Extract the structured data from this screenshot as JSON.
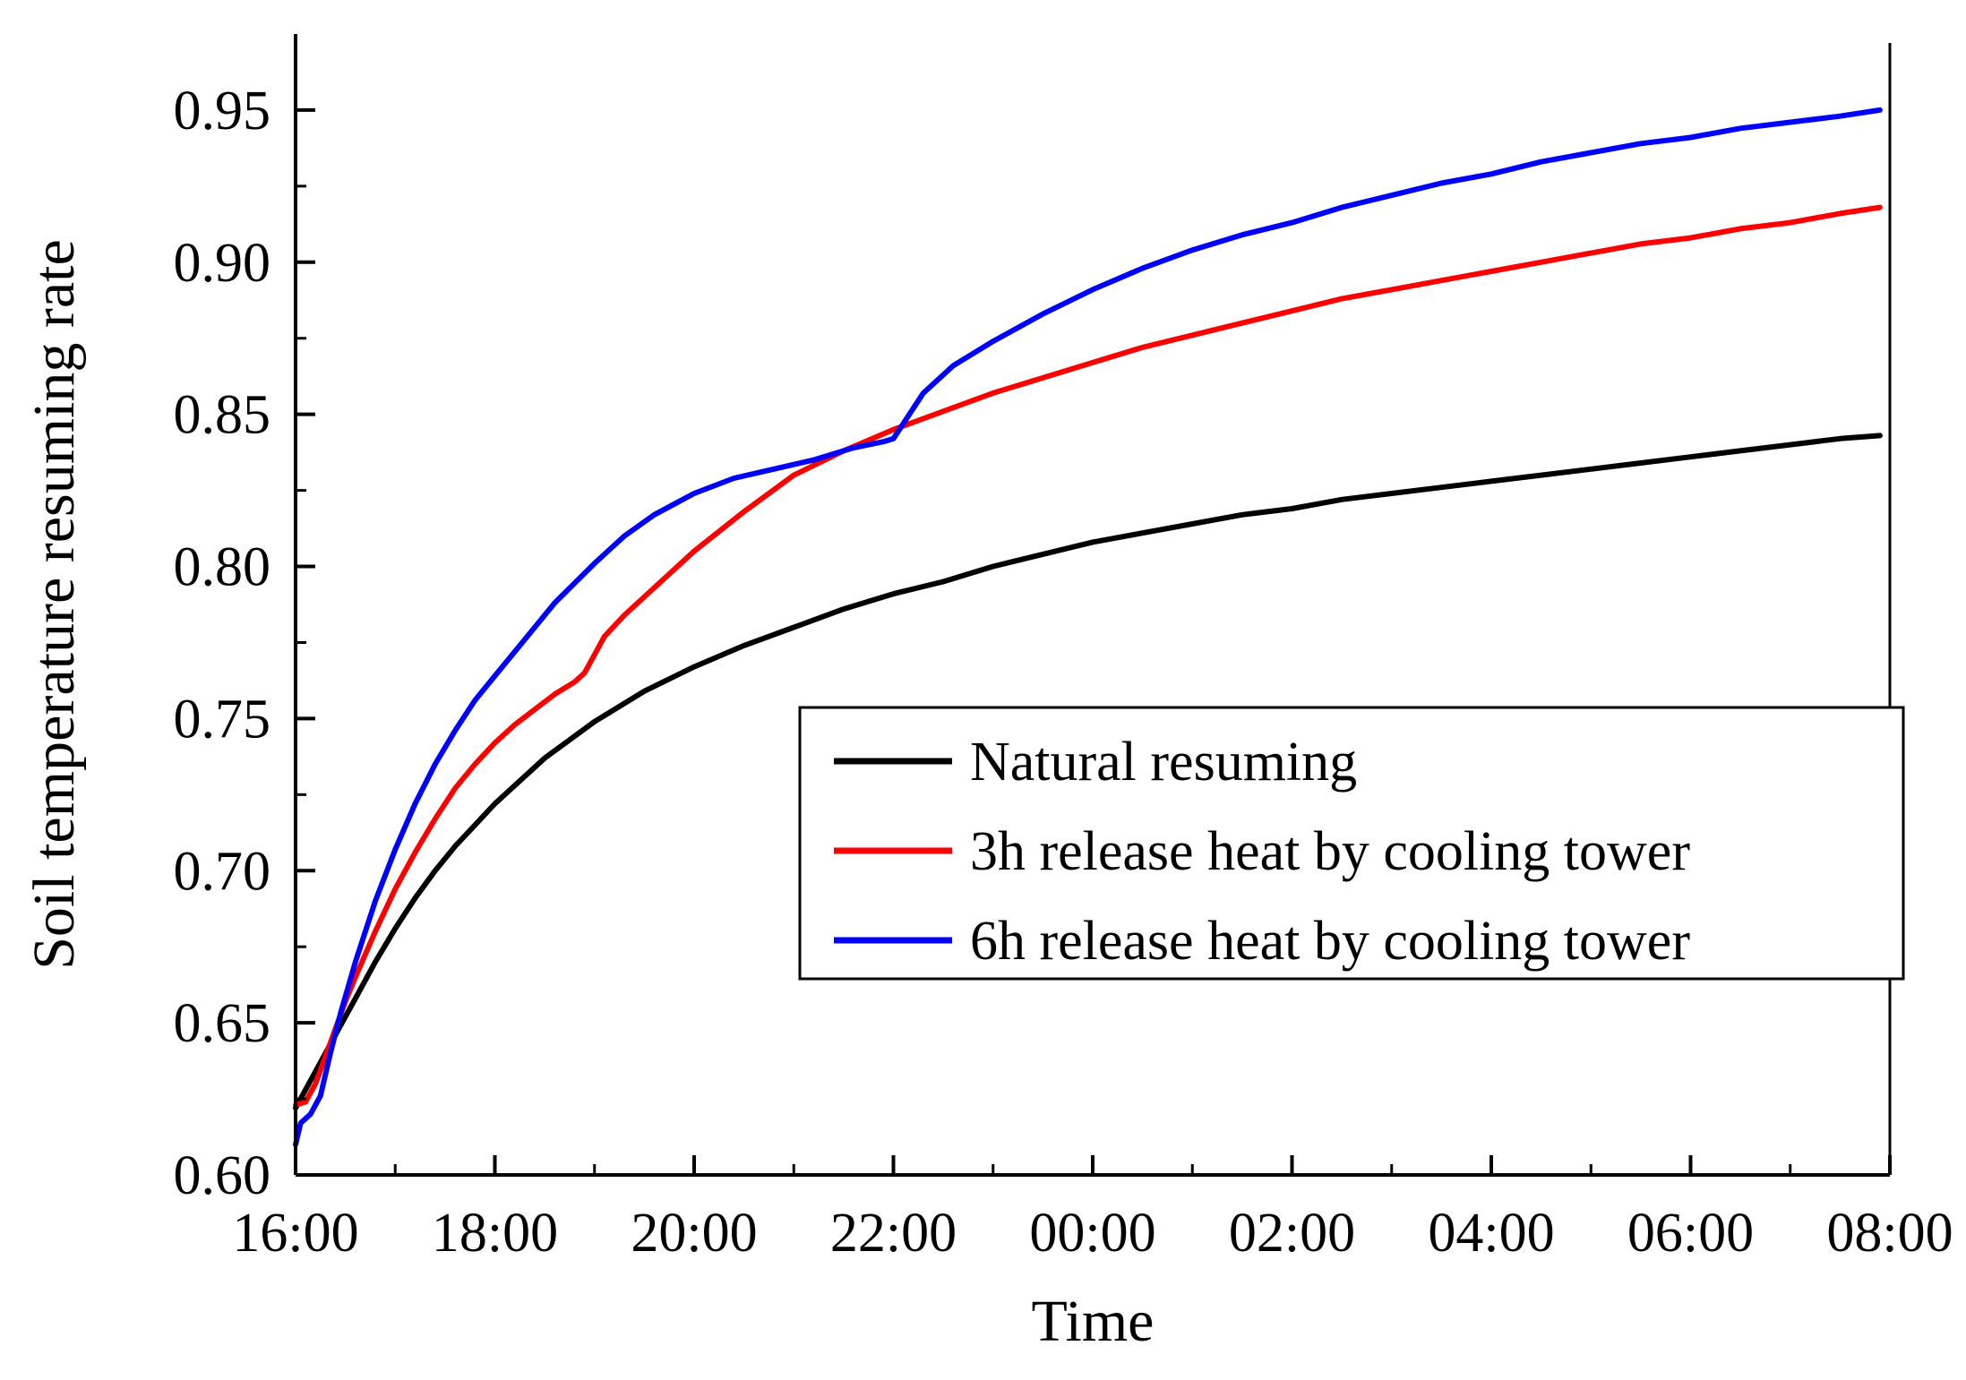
{
  "chart_data": {
    "type": "line",
    "title": "",
    "xlabel": "Time",
    "ylabel": "Soil temperature resuming rate",
    "x_unit": "hours since 16:00",
    "xlim": [
      0,
      16
    ],
    "ylim": [
      0.6,
      0.975
    ],
    "x_ticks": [
      {
        "value": 0,
        "label": "16:00"
      },
      {
        "value": 2,
        "label": "18:00"
      },
      {
        "value": 4,
        "label": "20:00"
      },
      {
        "value": 6,
        "label": "22:00"
      },
      {
        "value": 8,
        "label": "00:00"
      },
      {
        "value": 10,
        "label": "02:00"
      },
      {
        "value": 12,
        "label": "04:00"
      },
      {
        "value": 14,
        "label": "06:00"
      },
      {
        "value": 16,
        "label": "08:00"
      }
    ],
    "y_ticks": [
      {
        "value": 0.6,
        "label": "0.60"
      },
      {
        "value": 0.65,
        "label": "0.65"
      },
      {
        "value": 0.7,
        "label": "0.70"
      },
      {
        "value": 0.75,
        "label": "0.75"
      },
      {
        "value": 0.8,
        "label": "0.80"
      },
      {
        "value": 0.85,
        "label": "0.85"
      },
      {
        "value": 0.9,
        "label": "0.90"
      },
      {
        "value": 0.95,
        "label": "0.95"
      }
    ],
    "grid": false,
    "legend_position": "center-right",
    "series": [
      {
        "name": "Natural resuming",
        "color": "#000000",
        "points": [
          [
            0,
            0.622
          ],
          [
            0.1,
            0.628
          ],
          [
            0.2,
            0.634
          ],
          [
            0.3,
            0.64
          ],
          [
            0.4,
            0.646
          ],
          [
            0.5,
            0.652
          ],
          [
            0.6,
            0.658
          ],
          [
            0.7,
            0.664
          ],
          [
            0.8,
            0.67
          ],
          [
            1.0,
            0.681
          ],
          [
            1.2,
            0.691
          ],
          [
            1.4,
            0.7
          ],
          [
            1.6,
            0.708
          ],
          [
            1.8,
            0.715
          ],
          [
            2.0,
            0.722
          ],
          [
            2.5,
            0.737
          ],
          [
            3.0,
            0.749
          ],
          [
            3.5,
            0.759
          ],
          [
            4.0,
            0.767
          ],
          [
            4.5,
            0.774
          ],
          [
            5.0,
            0.78
          ],
          [
            5.5,
            0.786
          ],
          [
            6.0,
            0.791
          ],
          [
            6.5,
            0.795
          ],
          [
            7.0,
            0.8
          ],
          [
            7.5,
            0.804
          ],
          [
            8.0,
            0.808
          ],
          [
            8.5,
            0.811
          ],
          [
            9.0,
            0.814
          ],
          [
            9.5,
            0.817
          ],
          [
            10.0,
            0.819
          ],
          [
            10.5,
            0.822
          ],
          [
            11.0,
            0.824
          ],
          [
            11.5,
            0.826
          ],
          [
            12.0,
            0.828
          ],
          [
            12.5,
            0.83
          ],
          [
            13.0,
            0.832
          ],
          [
            13.5,
            0.834
          ],
          [
            14.0,
            0.836
          ],
          [
            14.5,
            0.838
          ],
          [
            15.0,
            0.84
          ],
          [
            15.5,
            0.842
          ],
          [
            15.9,
            0.843
          ]
        ]
      },
      {
        "name": "3h release heat by cooling tower",
        "color": "#ff0000",
        "points": [
          [
            0,
            0.623
          ],
          [
            0.1,
            0.624
          ],
          [
            0.2,
            0.63
          ],
          [
            0.3,
            0.639
          ],
          [
            0.4,
            0.648
          ],
          [
            0.5,
            0.657
          ],
          [
            0.6,
            0.665
          ],
          [
            0.8,
            0.68
          ],
          [
            1.0,
            0.694
          ],
          [
            1.2,
            0.706
          ],
          [
            1.4,
            0.717
          ],
          [
            1.6,
            0.727
          ],
          [
            1.8,
            0.735
          ],
          [
            2.0,
            0.742
          ],
          [
            2.2,
            0.748
          ],
          [
            2.4,
            0.753
          ],
          [
            2.6,
            0.758
          ],
          [
            2.8,
            0.762
          ],
          [
            2.9,
            0.765
          ],
          [
            3.0,
            0.771
          ],
          [
            3.1,
            0.777
          ],
          [
            3.3,
            0.784
          ],
          [
            3.6,
            0.793
          ],
          [
            4.0,
            0.805
          ],
          [
            4.5,
            0.818
          ],
          [
            5.0,
            0.83
          ],
          [
            5.5,
            0.838
          ],
          [
            6.0,
            0.845
          ],
          [
            6.5,
            0.851
          ],
          [
            7.0,
            0.857
          ],
          [
            7.5,
            0.862
          ],
          [
            8.0,
            0.867
          ],
          [
            8.5,
            0.872
          ],
          [
            9.0,
            0.876
          ],
          [
            9.5,
            0.88
          ],
          [
            10.0,
            0.884
          ],
          [
            10.5,
            0.888
          ],
          [
            11.0,
            0.891
          ],
          [
            11.5,
            0.894
          ],
          [
            12.0,
            0.897
          ],
          [
            12.5,
            0.9
          ],
          [
            13.0,
            0.903
          ],
          [
            13.5,
            0.906
          ],
          [
            14.0,
            0.908
          ],
          [
            14.5,
            0.911
          ],
          [
            15.0,
            0.913
          ],
          [
            15.5,
            0.916
          ],
          [
            15.9,
            0.918
          ]
        ]
      },
      {
        "name": "6h release heat by cooling tower",
        "color": "#0000ff",
        "points": [
          [
            0,
            0.61
          ],
          [
            0.05,
            0.617
          ],
          [
            0.15,
            0.62
          ],
          [
            0.25,
            0.626
          ],
          [
            0.35,
            0.64
          ],
          [
            0.45,
            0.653
          ],
          [
            0.6,
            0.67
          ],
          [
            0.8,
            0.69
          ],
          [
            1.0,
            0.707
          ],
          [
            1.2,
            0.722
          ],
          [
            1.4,
            0.735
          ],
          [
            1.6,
            0.746
          ],
          [
            1.8,
            0.756
          ],
          [
            2.0,
            0.764
          ],
          [
            2.3,
            0.776
          ],
          [
            2.6,
            0.788
          ],
          [
            3.0,
            0.801
          ],
          [
            3.3,
            0.81
          ],
          [
            3.6,
            0.817
          ],
          [
            4.0,
            0.824
          ],
          [
            4.4,
            0.829
          ],
          [
            4.8,
            0.832
          ],
          [
            5.2,
            0.835
          ],
          [
            5.6,
            0.839
          ],
          [
            5.9,
            0.841
          ],
          [
            6.0,
            0.842
          ],
          [
            6.1,
            0.847
          ],
          [
            6.3,
            0.857
          ],
          [
            6.6,
            0.866
          ],
          [
            7.0,
            0.874
          ],
          [
            7.5,
            0.883
          ],
          [
            8.0,
            0.891
          ],
          [
            8.5,
            0.898
          ],
          [
            9.0,
            0.904
          ],
          [
            9.5,
            0.909
          ],
          [
            10.0,
            0.913
          ],
          [
            10.5,
            0.918
          ],
          [
            11.0,
            0.922
          ],
          [
            11.5,
            0.926
          ],
          [
            12.0,
            0.929
          ],
          [
            12.5,
            0.933
          ],
          [
            13.0,
            0.936
          ],
          [
            13.5,
            0.939
          ],
          [
            14.0,
            0.941
          ],
          [
            14.5,
            0.944
          ],
          [
            15.0,
            0.946
          ],
          [
            15.5,
            0.948
          ],
          [
            15.9,
            0.95
          ]
        ]
      }
    ]
  }
}
